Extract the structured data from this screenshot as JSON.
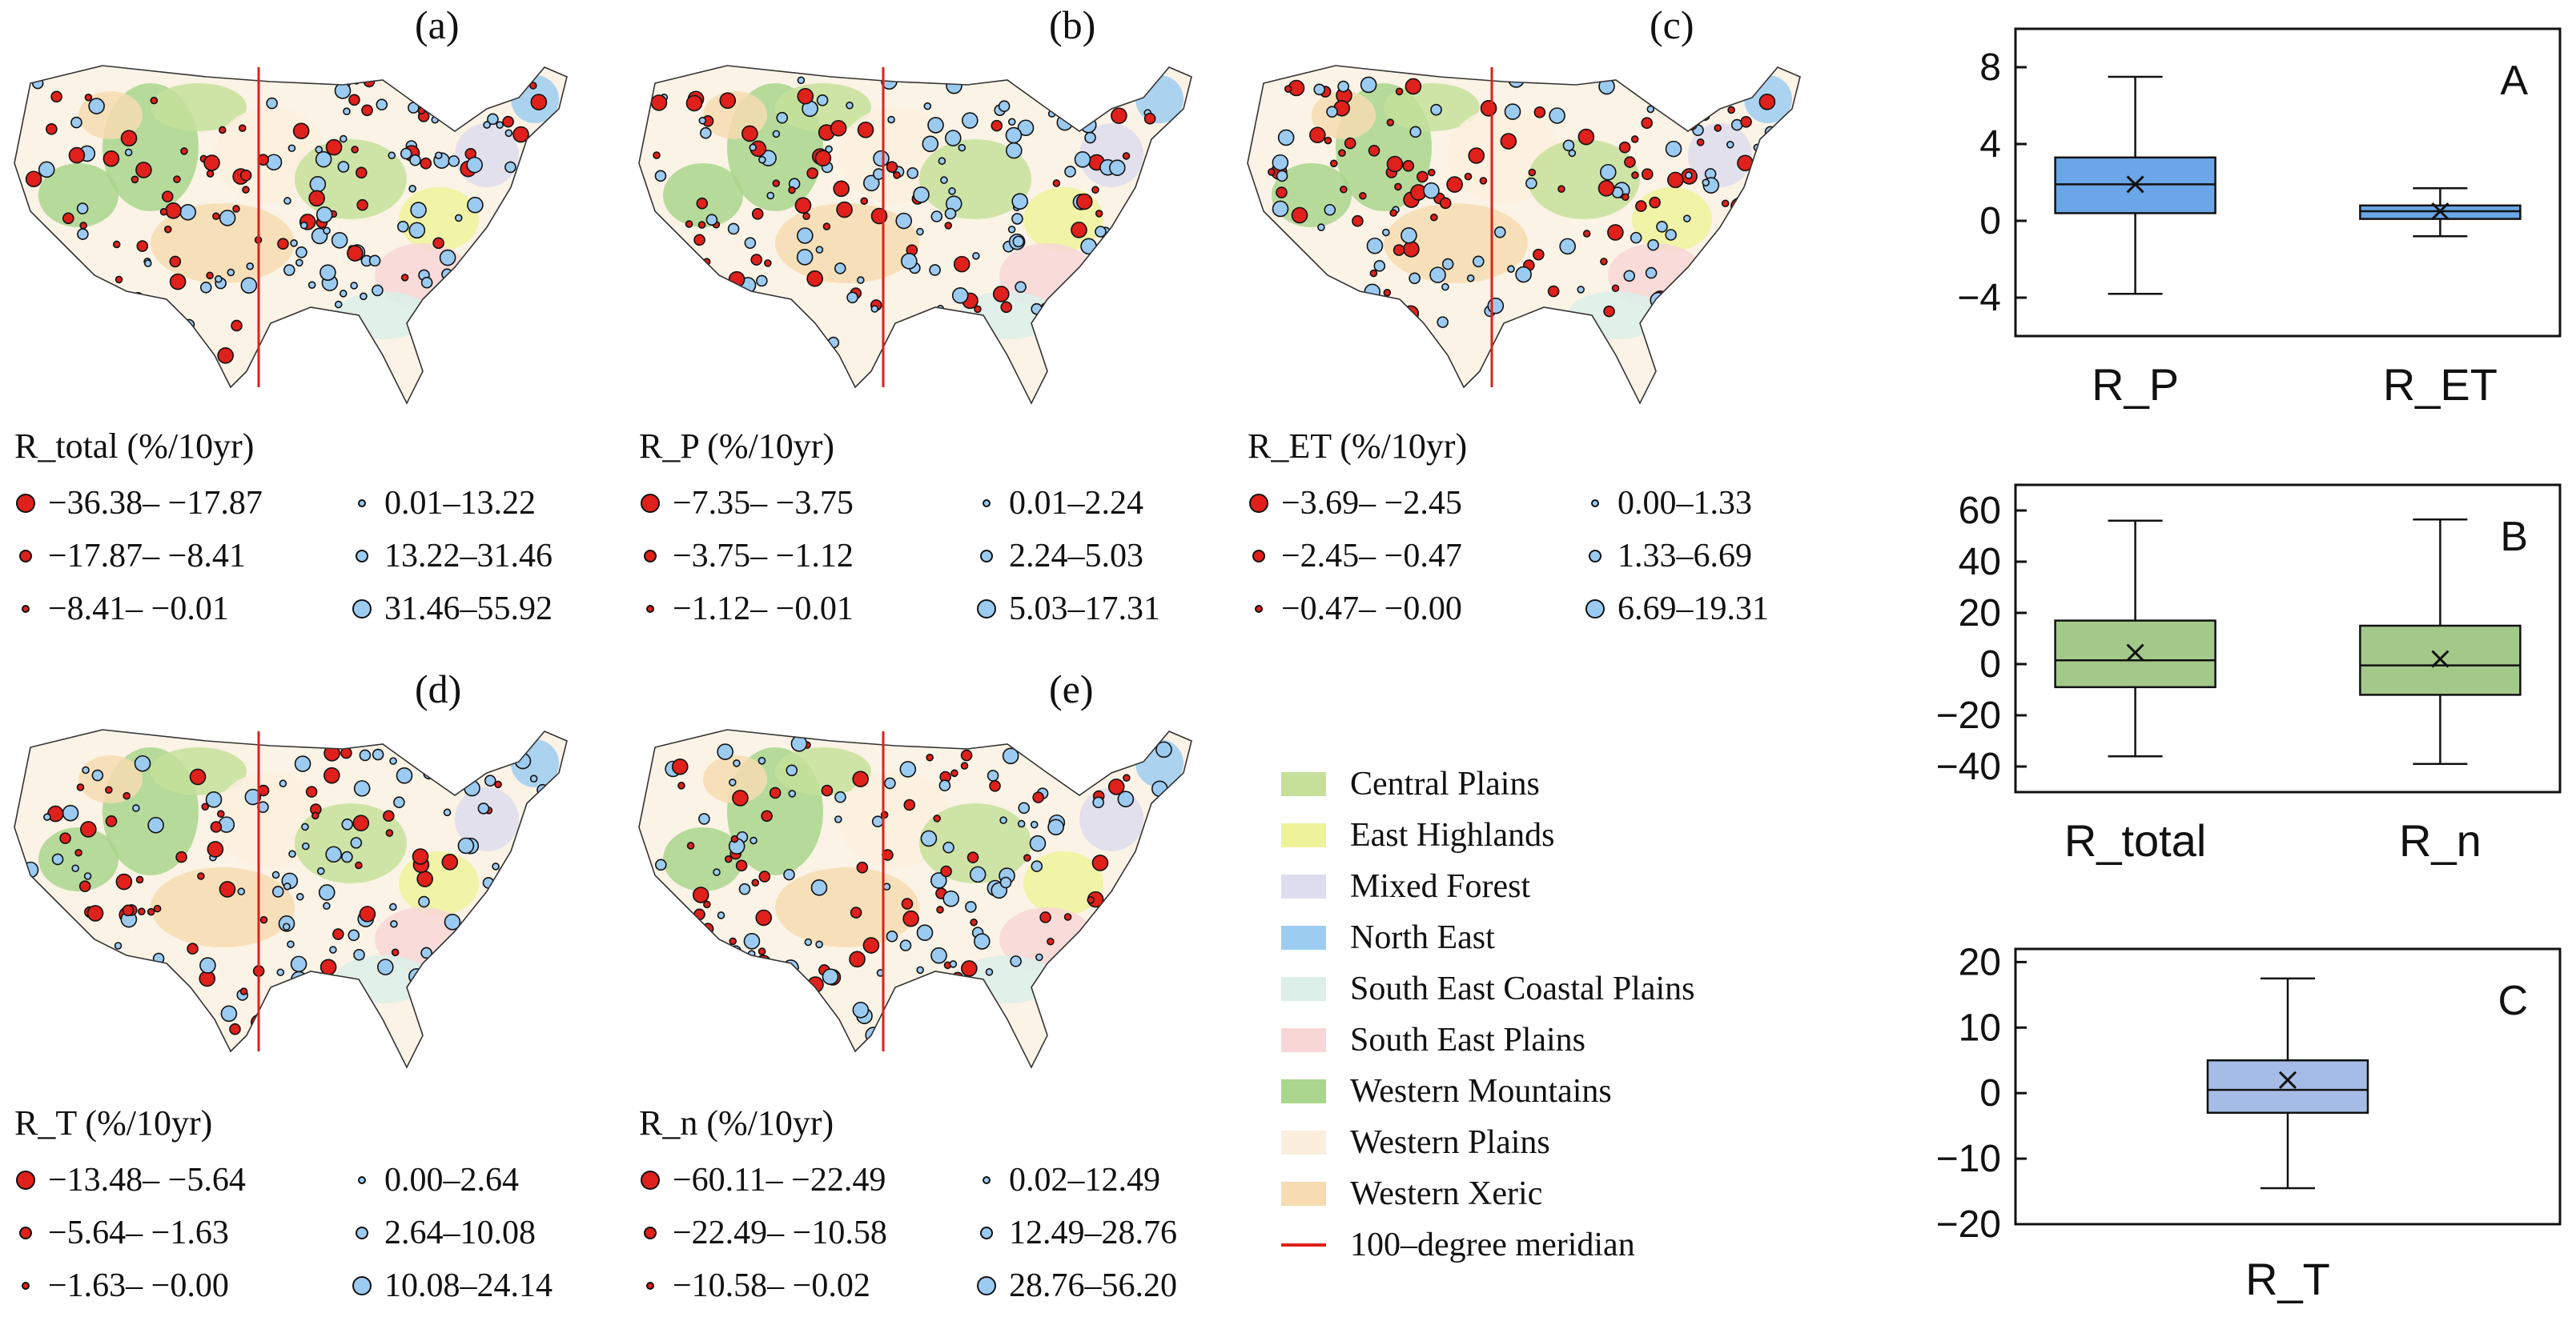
{
  "panels": {
    "a": {
      "label": "(a)",
      "title": "R_total (%/10yr)",
      "legend": [
        "−36.38– −17.87",
        "0.01–13.22",
        "−17.87– −8.41",
        "13.22–31.46",
        "−8.41– −0.01",
        "31.46–55.92"
      ]
    },
    "b": {
      "label": "(b)",
      "title": "R_P (%/10yr)",
      "legend": [
        "−7.35– −3.75",
        "0.01–2.24",
        "−3.75– −1.12",
        "2.24–5.03",
        "−1.12– −0.01",
        "5.03–17.31"
      ]
    },
    "c": {
      "label": "(c)",
      "title": "R_ET (%/10yr)",
      "legend": [
        "−3.69– −2.45",
        "0.00–1.33",
        "−2.45– −0.47",
        "1.33–6.69",
        "−0.47– −0.00",
        "6.69–19.31"
      ]
    },
    "d": {
      "label": "(d)",
      "title": "R_T (%/10yr)",
      "legend": [
        "−13.48– −5.64",
        "0.00–2.64",
        "−5.64– −1.63",
        "2.64–10.08",
        "−1.63– −0.00",
        "10.08–24.14"
      ]
    },
    "e": {
      "label": "(e)",
      "title": "R_n (%/10yr)",
      "legend": [
        "−60.11– −22.49",
        "0.02–12.49",
        "−22.49– −10.58",
        "12.49–28.76",
        "−10.58– −0.02",
        "28.76–56.20"
      ]
    }
  },
  "ecoregions": [
    {
      "name": "Central Plains",
      "color": "#c6e09a"
    },
    {
      "name": "East Highlands",
      "color": "#eef39a"
    },
    {
      "name": "Mixed Forest",
      "color": "#dedcef"
    },
    {
      "name": "North East",
      "color": "#9ccdf0"
    },
    {
      "name": "South East Coastal Plains",
      "color": "#dcefe9"
    },
    {
      "name": "South East Plains",
      "color": "#f8d6d6"
    },
    {
      "name": "Western Mountains",
      "color": "#a9d58c"
    },
    {
      "name": "Western Plains",
      "color": "#fbeedd"
    },
    {
      "name": "Western Xeric",
      "color": "#f6dcb0"
    }
  ],
  "meridian_label": "100–degree meridian",
  "colors": {
    "negative": "#e0201b",
    "positive": "#9ccbf2"
  },
  "chart_data": [
    {
      "type": "box",
      "panel": "A",
      "ylim": [
        -6,
        10
      ],
      "yticks": [
        8,
        4,
        0,
        -4
      ],
      "box_color": "#6aa6e8",
      "categories": [
        "R_P",
        "R_ET"
      ],
      "boxes": [
        {
          "min": -3.8,
          "q1": 0.4,
          "median": 1.9,
          "q3": 3.3,
          "max": 7.5,
          "mean": 1.9
        },
        {
          "min": -0.8,
          "q1": 0.1,
          "median": 0.5,
          "q3": 0.8,
          "max": 1.7,
          "mean": 0.5
        }
      ]
    },
    {
      "type": "box",
      "panel": "B",
      "ylim": [
        -50,
        70
      ],
      "yticks": [
        60,
        40,
        20,
        0,
        -20,
        -40
      ],
      "box_color": "#a3c98a",
      "categories": [
        "R_total",
        "R_n"
      ],
      "boxes": [
        {
          "min": -36,
          "q1": -9,
          "median": 1.5,
          "q3": 17,
          "max": 56,
          "mean": 4.5
        },
        {
          "min": -39,
          "q1": -12,
          "median": -0.5,
          "q3": 15,
          "max": 56.5,
          "mean": 2
        }
      ]
    },
    {
      "type": "box",
      "panel": "C",
      "ylim": [
        -20,
        22
      ],
      "yticks": [
        20,
        10,
        0,
        -10,
        -20
      ],
      "box_color": "#a5bde6",
      "categories": [
        "R_T"
      ],
      "boxes": [
        {
          "min": -14.5,
          "q1": -3,
          "median": 0.5,
          "q3": 5,
          "max": 17.5,
          "mean": 2
        }
      ]
    }
  ]
}
